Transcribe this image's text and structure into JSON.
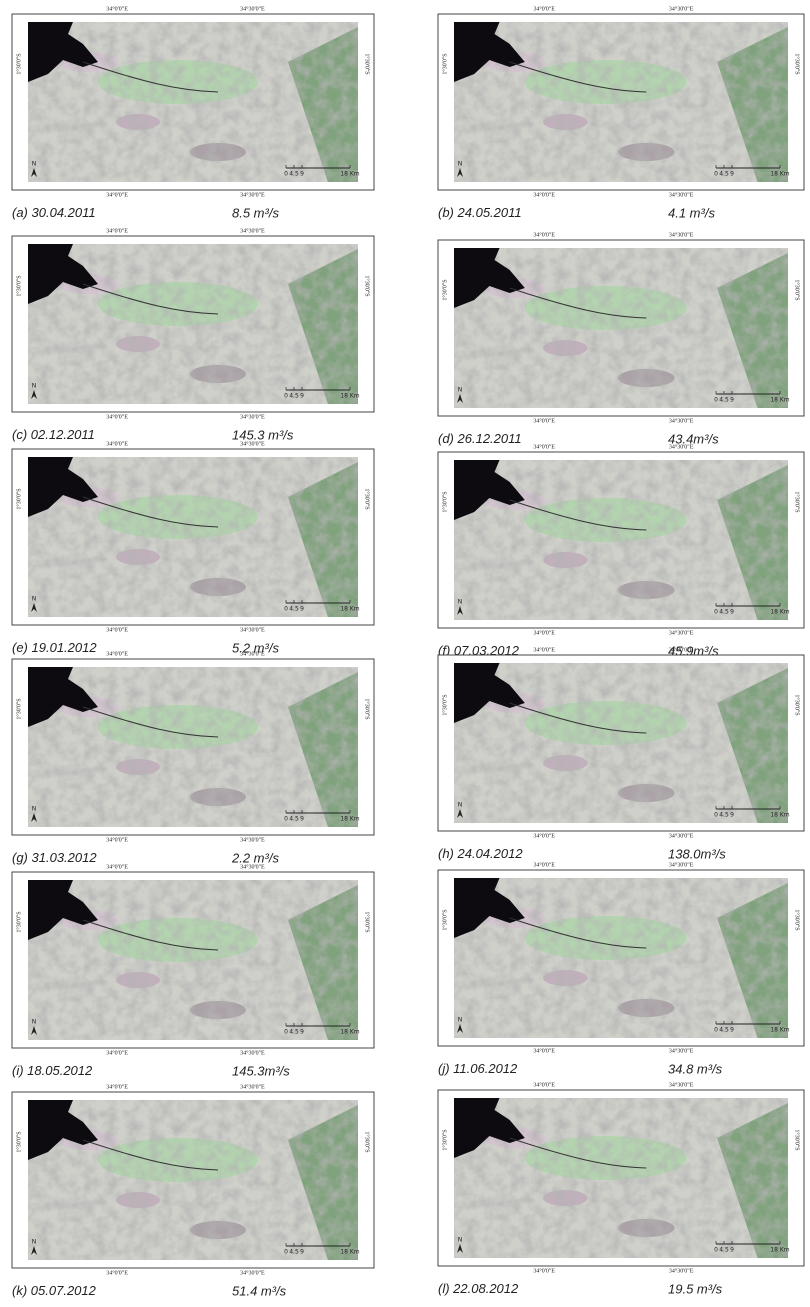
{
  "axis_labels": {
    "lon_left": "34°0'0\"E",
    "lon_right": "34°30'0\"E",
    "lat": "1°30'0\"S"
  },
  "scale_bar": [
    "0",
    "4.5",
    "9",
    "18 Km"
  ],
  "north": "N",
  "panels": [
    {
      "label": "(a)",
      "date": "30.04.2011",
      "flow": "8.5 m³/s"
    },
    {
      "label": "(b)",
      "date": "24.05.2011",
      "flow": "4.1 m³/s"
    },
    {
      "label": "(c)",
      "date": "02.12.2011",
      "flow": "145.3 m³/s"
    },
    {
      "label": "(d)",
      "date": "26.12.2011",
      "flow": "43.4m³/s"
    },
    {
      "label": "(e)",
      "date": "19.01.2012",
      "flow": "5.2 m³/s"
    },
    {
      "label": "(f)",
      "date": "07.03.2012",
      "flow": "45.9m³/s"
    },
    {
      "label": "(g)",
      "date": "31.03.2012",
      "flow": "2.2 m³/s"
    },
    {
      "label": "(h)",
      "date": "24.04.2012",
      "flow": "138.0m³/s"
    },
    {
      "label": "(i)",
      "date": "18.05.2012",
      "flow": "145.3m³/s"
    },
    {
      "label": "(j)",
      "date": "11.06.2012",
      "flow": "34.8 m³/s"
    },
    {
      "label": "(k)",
      "date": "05.07.2012",
      "flow": "51.4 m³/s"
    },
    {
      "label": "(l)",
      "date": "22.08.2012",
      "flow": "19.5 m³/s"
    }
  ]
}
